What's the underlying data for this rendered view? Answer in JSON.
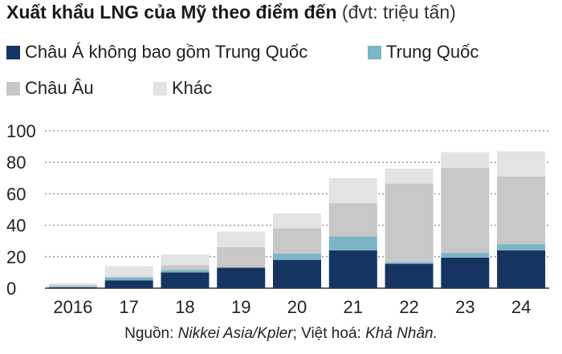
{
  "title": {
    "bold": "Xuất khẩu LNG của Mỹ theo điểm đến",
    "unit": "(đvt: triệu tấn)"
  },
  "source": {
    "prefix": "Nguồn: ",
    "source_name": "Nikkei Asia/Kpler",
    "middle": "; Việt hoá: ",
    "translator": "Khả Nhân."
  },
  "chart_data": {
    "type": "bar",
    "stacked": true,
    "categories": [
      "2016",
      "17",
      "18",
      "19",
      "20",
      "21",
      "22",
      "23",
      "24"
    ],
    "series": [
      {
        "name": "Châu Á không bao gồm Trung Quốc",
        "color": "#153462",
        "values": [
          0.5,
          5,
          10,
          13,
          18,
          24,
          15.5,
          19.5,
          24
        ]
      },
      {
        "name": "Trung Quốc",
        "color": "#7cb5c6",
        "values": [
          0.5,
          2,
          1.5,
          0,
          4,
          9,
          1,
          3,
          4
        ]
      },
      {
        "name": "Châu Âu",
        "color": "#c7c7c7",
        "values": [
          1,
          0,
          3,
          13,
          16,
          21,
          50,
          54,
          43
        ]
      },
      {
        "name": "Khác",
        "color": "#e3e3e3",
        "values": [
          1,
          7,
          7,
          10,
          9.5,
          16,
          9.5,
          10,
          16
        ]
      }
    ],
    "ylim": [
      0,
      100
    ],
    "yticks": [
      0,
      20,
      40,
      60,
      80,
      100
    ],
    "grid": "horizontal dotted",
    "legend_position": "top",
    "xlabel": "",
    "ylabel": ""
  }
}
